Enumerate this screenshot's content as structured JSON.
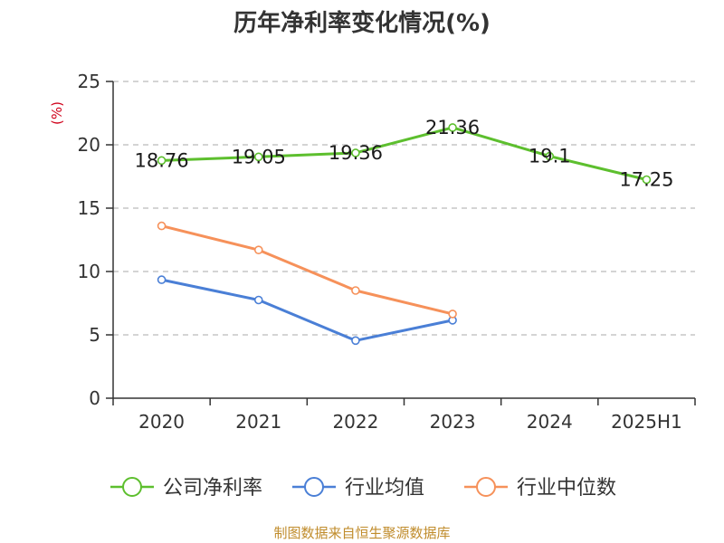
{
  "chart_data": {
    "type": "line",
    "title": "历年净利率变化情况(%)",
    "ylabel": "(%)",
    "xlabel": "",
    "categories": [
      "2020",
      "2021",
      "2022",
      "2023",
      "2024",
      "2025H1"
    ],
    "ylim": [
      0,
      25
    ],
    "yticks": [
      "0",
      "5",
      "10",
      "15",
      "20",
      "25"
    ],
    "grid": "horizontal-dashed",
    "legend": "bottom",
    "series": [
      {
        "name": "公司净利率",
        "color": "#5dbf2e",
        "values": [
          18.76,
          19.05,
          19.36,
          21.36,
          19.1,
          17.25
        ],
        "labels": [
          "18.76",
          "19.05",
          "19.36",
          "21.36",
          "19.1",
          "17.25"
        ]
      },
      {
        "name": "行业均值",
        "color": "#4a7fd6",
        "values": [
          9.35,
          7.75,
          4.55,
          6.15,
          null,
          null
        ]
      },
      {
        "name": "行业中位数",
        "color": "#f6915a",
        "values": [
          13.6,
          11.7,
          8.5,
          6.65,
          null,
          null
        ]
      }
    ]
  },
  "colors": {
    "axis": "#333333",
    "grid": "#bbbbbb",
    "unit": "#d0021b",
    "source": "#c08c2c"
  },
  "source": "制图数据来自恒生聚源数据库"
}
